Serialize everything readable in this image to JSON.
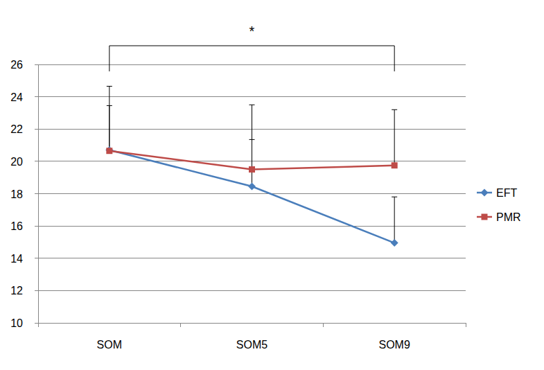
{
  "chart_data": {
    "type": "line",
    "categories": [
      "SOM",
      "SOM5",
      "SOM9"
    ],
    "series": [
      {
        "name": "EFT",
        "color": "#4a7ebb",
        "marker": "diamond",
        "line_style": "solid",
        "values": [
          20.7,
          18.45,
          14.95
        ],
        "errors": [
          3.95,
          2.9,
          2.85
        ]
      },
      {
        "name": "PMR",
        "color": "#be4b48",
        "marker": "square",
        "line_style": "solid",
        "values": [
          20.65,
          19.5,
          19.75
        ],
        "errors": [
          2.8,
          4.0,
          3.45
        ]
      }
    ],
    "ylim": [
      10,
      26
    ],
    "yticks": [
      10,
      12,
      14,
      16,
      18,
      20,
      22,
      24,
      26
    ],
    "grid": true,
    "legend": "right",
    "annotations": [
      {
        "text": "*",
        "from": "SOM",
        "to": "SOM9"
      }
    ]
  }
}
